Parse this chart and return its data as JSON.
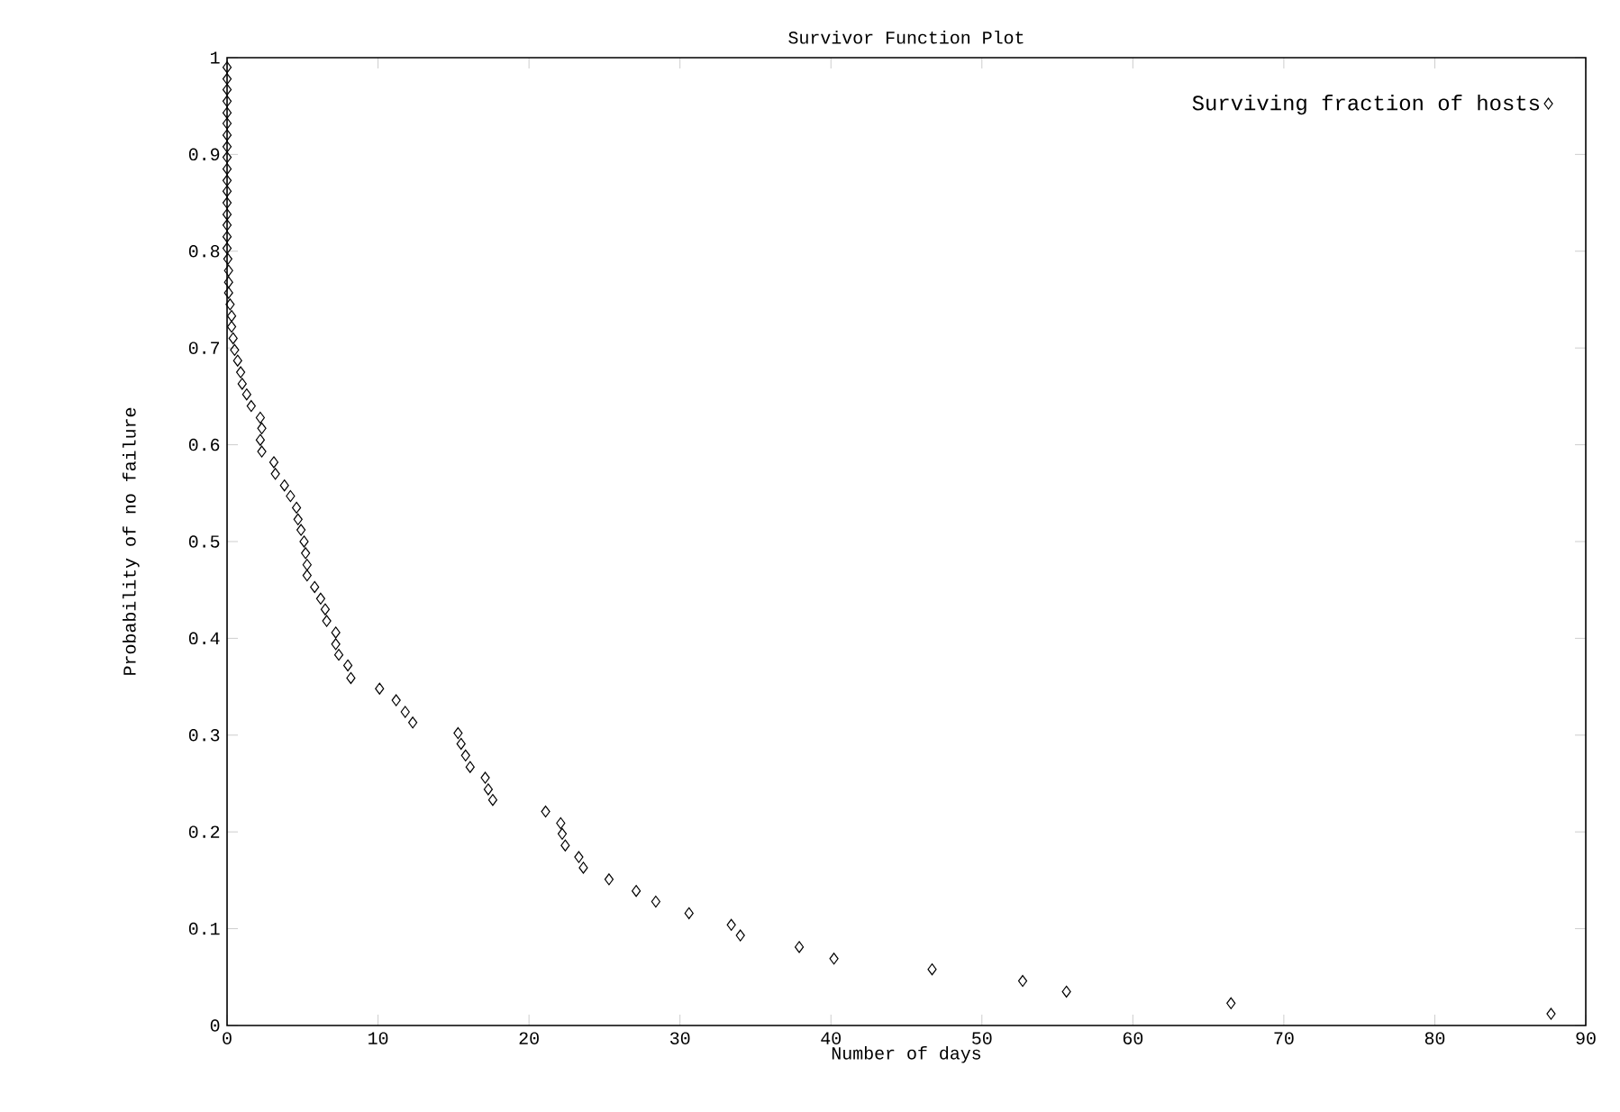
{
  "chart_data": {
    "type": "scatter",
    "title": "Survivor Function Plot",
    "xlabel": "Number of days",
    "ylabel": "Probability of no failure",
    "xlim": [
      0,
      90
    ],
    "ylim": [
      0,
      1
    ],
    "xticks": [
      0,
      10,
      20,
      30,
      40,
      50,
      60,
      70,
      80,
      90
    ],
    "yticks": [
      0,
      0.1,
      0.2,
      0.3,
      0.4,
      0.5,
      0.6,
      0.7,
      0.8,
      0.9,
      1
    ],
    "marker": "diamond",
    "legend": "top right",
    "grid": false,
    "series": [
      {
        "name": "Surviving fraction of hosts",
        "color": "#000000",
        "x": [
          87.7,
          66.5,
          55.6,
          52.7,
          46.7,
          40.2,
          37.9,
          34.0,
          33.4,
          30.6,
          28.4,
          27.1,
          25.3,
          23.6,
          23.3,
          22.4,
          22.2,
          22.1,
          21.1,
          17.6,
          17.3,
          17.1,
          16.1,
          15.8,
          15.5,
          15.3,
          12.3,
          11.8,
          11.2,
          10.1,
          8.2,
          8.0,
          7.4,
          7.2,
          7.2,
          6.6,
          6.5,
          6.2,
          5.8,
          5.3,
          5.3,
          5.2,
          5.1,
          4.9,
          4.7,
          4.6,
          4.2,
          3.8,
          3.2,
          3.1,
          2.3,
          2.2,
          2.3,
          2.2,
          1.6,
          1.3,
          1.0,
          0.9,
          0.7,
          0.5,
          0.4,
          0.3,
          0.3,
          0.2,
          0.1,
          0.1,
          0.1,
          0.05,
          0,
          0,
          0,
          0,
          0,
          0,
          0,
          0,
          0,
          0,
          0,
          0,
          0,
          0,
          0,
          0,
          0
        ],
        "values": [
          0.012,
          0.023,
          0.035,
          0.046,
          0.058,
          0.069,
          0.081,
          0.093,
          0.104,
          0.116,
          0.128,
          0.139,
          0.151,
          0.163,
          0.174,
          0.186,
          0.198,
          0.209,
          0.221,
          0.233,
          0.244,
          0.256,
          0.267,
          0.279,
          0.291,
          0.302,
          0.313,
          0.324,
          0.336,
          0.348,
          0.359,
          0.372,
          0.383,
          0.394,
          0.406,
          0.418,
          0.43,
          0.441,
          0.453,
          0.465,
          0.476,
          0.488,
          0.5,
          0.512,
          0.523,
          0.535,
          0.547,
          0.558,
          0.57,
          0.582,
          0.593,
          0.605,
          0.617,
          0.628,
          0.64,
          0.652,
          0.663,
          0.675,
          0.687,
          0.698,
          0.71,
          0.722,
          0.733,
          0.745,
          0.757,
          0.768,
          0.78,
          0.792,
          0.803,
          0.815,
          0.827,
          0.838,
          0.85,
          0.862,
          0.873,
          0.885,
          0.897,
          0.908,
          0.92,
          0.932,
          0.943,
          0.955,
          0.967,
          0.978,
          0.99
        ]
      }
    ]
  }
}
